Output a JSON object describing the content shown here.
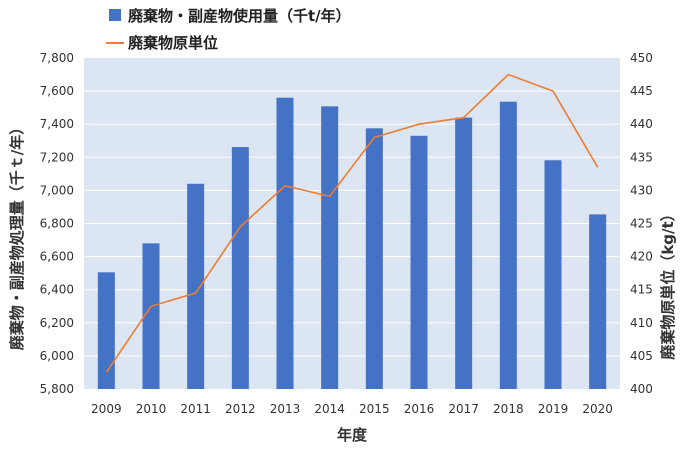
{
  "colors": {
    "plot_background": "#dce6f2",
    "bar": "#4472c4",
    "line": "#ed7d31",
    "grid": "#ffffff"
  },
  "chart_data": {
    "type": "bar",
    "categories": [
      "2009",
      "2010",
      "2011",
      "2012",
      "2013",
      "2014",
      "2015",
      "2016",
      "2017",
      "2018",
      "2019",
      "2020"
    ],
    "xlabel": "年度",
    "ylabel": "廃棄物・副産物処理量（千ｔ/年）",
    "y2label": "廃棄物原単位（kg/t）",
    "ylim": [
      5800,
      7800
    ],
    "y2lim": [
      400,
      450
    ],
    "yticks": [
      "5,800",
      "6,000",
      "6,200",
      "6,400",
      "6,600",
      "6,800",
      "7,000",
      "7,200",
      "7,400",
      "7,600",
      "7,800"
    ],
    "y2ticks": [
      "400",
      "405",
      "410",
      "415",
      "420",
      "425",
      "430",
      "435",
      "440",
      "445",
      "450"
    ],
    "grid": true,
    "legend_position": "top",
    "series": [
      {
        "name": "廃棄物・副産物使用量（千t/年）",
        "type": "bar",
        "axis": "left",
        "values": [
          6505,
          6680,
          7040,
          7262,
          7560,
          7508,
          7375,
          7330,
          7440,
          7536,
          7182,
          6855
        ]
      },
      {
        "name": "廃棄物原単位",
        "type": "line",
        "axis": "right",
        "values": [
          402.5,
          412.5,
          414.5,
          424.5,
          430.7,
          429.1,
          438.0,
          440.0,
          441.0,
          447.5,
          445.0,
          433.5
        ]
      }
    ]
  }
}
